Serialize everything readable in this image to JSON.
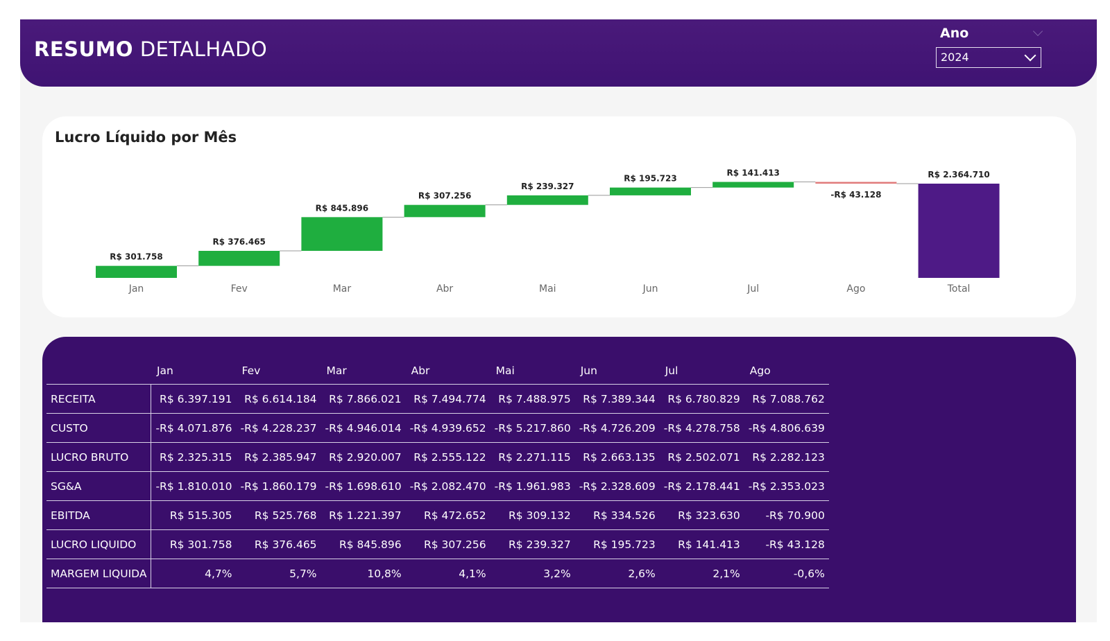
{
  "header": {
    "title_bold": "RESUMO",
    "title_light": "DETALHADO"
  },
  "slicer": {
    "label": "Ano",
    "value": "2024"
  },
  "chart_data": {
    "type": "waterfall",
    "title": "Lucro Líquido por Mês",
    "categories": [
      "Jan",
      "Fev",
      "Mar",
      "Abr",
      "Mai",
      "Jun",
      "Jul",
      "Ago",
      "Total"
    ],
    "values": [
      301758,
      376465,
      845896,
      307256,
      239327,
      195723,
      141413,
      -43128,
      2364710
    ],
    "data_labels": [
      "R$ 301.758",
      "R$ 376.465",
      "R$ 845.896",
      "R$ 307.256",
      "R$ 239.327",
      "R$ 195.723",
      "R$ 141.413",
      "-R$ 43.128",
      "R$ 2.364.710"
    ],
    "colors": {
      "increase": "#1fae3f",
      "decrease": "#e07a7a",
      "total": "#4e1a86",
      "connector": "#999999"
    }
  },
  "table": {
    "columns": [
      "Jan",
      "Fev",
      "Mar",
      "Abr",
      "Mai",
      "Jun",
      "Jul",
      "Ago"
    ],
    "rows": [
      {
        "label": "RECEITA",
        "values": [
          "R$ 6.397.191",
          "R$ 6.614.184",
          "R$ 7.866.021",
          "R$ 7.494.774",
          "R$ 7.488.975",
          "R$ 7.389.344",
          "R$ 6.780.829",
          "R$ 7.088.762"
        ]
      },
      {
        "label": "CUSTO",
        "values": [
          "-R$ 4.071.876",
          "-R$ 4.228.237",
          "-R$ 4.946.014",
          "-R$ 4.939.652",
          "-R$ 5.217.860",
          "-R$ 4.726.209",
          "-R$ 4.278.758",
          "-R$ 4.806.639"
        ]
      },
      {
        "label": "LUCRO BRUTO",
        "values": [
          "R$ 2.325.315",
          "R$ 2.385.947",
          "R$ 2.920.007",
          "R$ 2.555.122",
          "R$ 2.271.115",
          "R$ 2.663.135",
          "R$ 2.502.071",
          "R$ 2.282.123"
        ]
      },
      {
        "label": "SG&A",
        "values": [
          "-R$ 1.810.010",
          "-R$ 1.860.179",
          "-R$ 1.698.610",
          "-R$ 2.082.470",
          "-R$ 1.961.983",
          "-R$ 2.328.609",
          "-R$ 2.178.441",
          "-R$ 2.353.023"
        ]
      },
      {
        "label": "EBITDA",
        "values": [
          "R$ 515.305",
          "R$ 525.768",
          "R$ 1.221.397",
          "R$ 472.652",
          "R$ 309.132",
          "R$ 334.526",
          "R$ 323.630",
          "-R$ 70.900"
        ]
      },
      {
        "label": "LUCRO LIQUIDO",
        "values": [
          "R$ 301.758",
          "R$ 376.465",
          "R$ 845.896",
          "R$ 307.256",
          "R$ 239.327",
          "R$ 195.723",
          "R$ 141.413",
          "-R$ 43.128"
        ]
      },
      {
        "label": "MARGEM LIQUIDA",
        "values": [
          "4,7%",
          "5,7%",
          "10,8%",
          "4,1%",
          "3,2%",
          "2,6%",
          "2,1%",
          "-0,6%"
        ]
      }
    ]
  }
}
